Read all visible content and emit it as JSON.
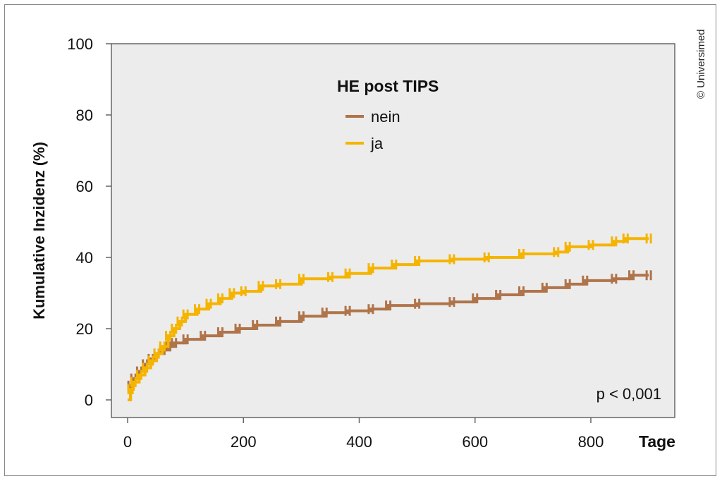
{
  "chart_data": {
    "type": "line",
    "subtype": "cumulative incidence (step) with censor marks",
    "xlabel": "Tage",
    "ylabel": "Kumulative Inzidenz (%)",
    "xlim": [
      0,
      900
    ],
    "ylim": [
      0,
      100
    ],
    "xticks": [
      0,
      200,
      400,
      600,
      800
    ],
    "yticks": [
      0,
      20,
      40,
      60,
      80,
      100
    ],
    "grid": false,
    "legend": {
      "title": "HE post TIPS",
      "placement": "top-center"
    },
    "annotation": "p < 0,001",
    "series": [
      {
        "name": "nein",
        "color": "#b0744a",
        "x": [
          0,
          5,
          10,
          20,
          30,
          40,
          50,
          60,
          70,
          80,
          100,
          130,
          160,
          190,
          220,
          260,
          300,
          340,
          380,
          420,
          450,
          500,
          560,
          600,
          640,
          680,
          720,
          760,
          790,
          840,
          870,
          900
        ],
        "y": [
          0,
          4,
          6,
          8,
          10,
          11.5,
          13,
          14,
          15,
          16,
          17,
          18,
          19,
          20,
          21,
          22,
          23.5,
          24.5,
          25,
          25.5,
          26.5,
          27,
          27.5,
          28.5,
          29.5,
          30.5,
          31.5,
          32.5,
          33.5,
          34,
          35,
          35
        ]
      },
      {
        "name": "ja",
        "color": "#f5b400",
        "x": [
          0,
          5,
          10,
          20,
          30,
          40,
          50,
          60,
          70,
          80,
          90,
          100,
          120,
          140,
          160,
          180,
          200,
          230,
          260,
          300,
          350,
          380,
          420,
          460,
          500,
          560,
          620,
          680,
          740,
          760,
          800,
          840,
          860,
          900
        ],
        "y": [
          0,
          3,
          5,
          7,
          9,
          11,
          13,
          15,
          18,
          20,
          22,
          24,
          25.5,
          27,
          28.5,
          30,
          30.5,
          32,
          32.5,
          34,
          34.5,
          35.5,
          37,
          38,
          39,
          39.5,
          40,
          41,
          41.5,
          43,
          43.5,
          44.5,
          45.3,
          45.3
        ]
      }
    ]
  },
  "copyright": "© Universimed"
}
